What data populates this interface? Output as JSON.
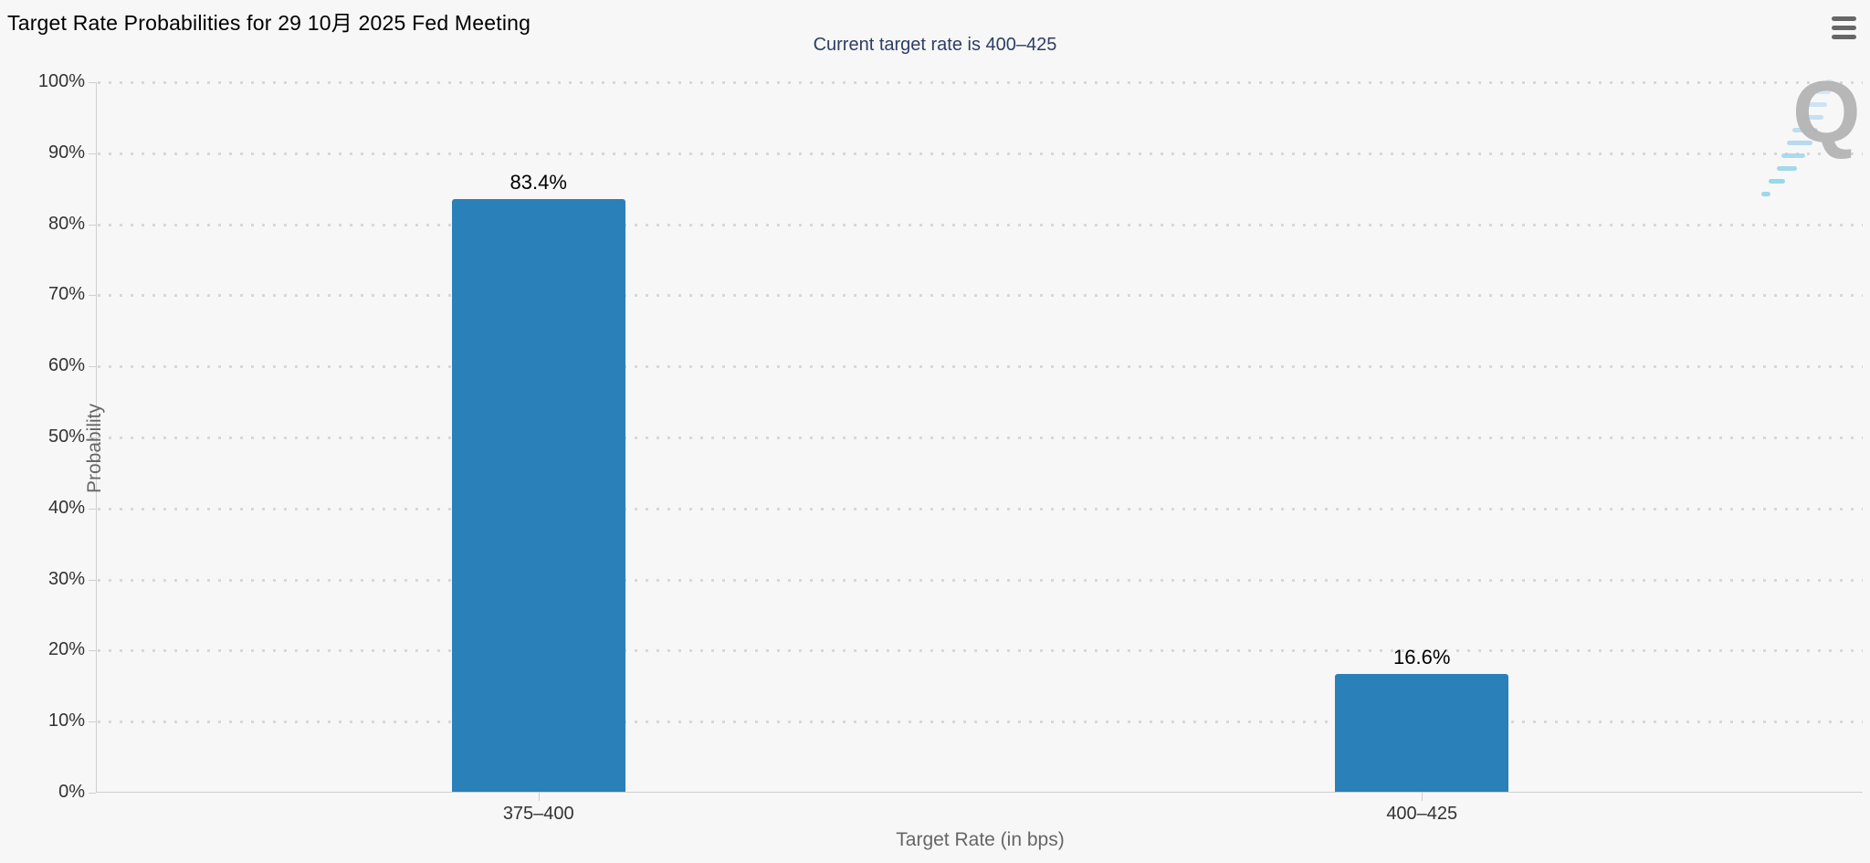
{
  "header": {
    "title": "Target Rate Probabilities for 29 10月 2025 Fed Meeting",
    "menu_icon": "hamburger-menu-icon"
  },
  "chart_data": {
    "type": "bar",
    "title": "Target Rate Probabilities for 29 10月 2025 Fed Meeting",
    "subtitle": "Current target rate is 400–425",
    "categories": [
      "375–400",
      "400–425"
    ],
    "values": [
      83.4,
      16.6
    ],
    "value_labels": [
      "83.4%",
      "16.6%"
    ],
    "xlabel": "Target Rate (in bps)",
    "ylabel": "Probability",
    "ylim": [
      0,
      100
    ],
    "ytick_step": 10,
    "ytick_labels": [
      "0%",
      "10%",
      "20%",
      "30%",
      "40%",
      "50%",
      "60%",
      "70%",
      "80%",
      "90%",
      "100%"
    ],
    "grid": "horizontal-dotted",
    "legend": "none",
    "bar_color": "#2a80b9",
    "background_color": "#f7f7f7",
    "subtitle_color": "#2c3e64"
  },
  "watermark": {
    "letter": "Q"
  }
}
